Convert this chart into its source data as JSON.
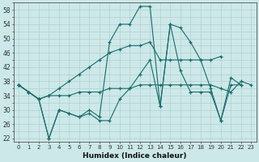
{
  "xlabel": "Humidex (Indice chaleur)",
  "background_color": "#cce8e8",
  "grid_color": "#b0d0d0",
  "line_color": "#1a6b6b",
  "xlim": [
    -0.5,
    23.5
  ],
  "ylim": [
    21,
    60
  ],
  "xticks": [
    0,
    1,
    2,
    3,
    4,
    5,
    6,
    7,
    8,
    9,
    10,
    11,
    12,
    13,
    14,
    15,
    16,
    17,
    18,
    19,
    20,
    21,
    22,
    23
  ],
  "yticks": [
    22,
    26,
    30,
    34,
    38,
    42,
    46,
    50,
    54,
    58
  ],
  "s1_x": [
    0,
    1,
    2,
    3,
    4,
    5,
    6,
    7,
    8,
    9,
    10,
    11,
    12,
    13,
    14,
    15,
    16,
    17,
    18,
    19,
    20,
    21,
    22
  ],
  "s1_y": [
    37,
    35,
    33,
    22,
    30,
    29,
    28,
    30,
    28,
    49,
    54,
    54,
    59,
    59,
    31,
    54,
    53,
    49,
    44,
    36,
    27,
    39,
    37
  ],
  "s2_x": [
    0,
    1,
    2,
    3,
    4,
    5,
    6,
    7,
    8,
    9,
    10,
    11,
    12,
    13,
    14,
    15,
    16,
    17,
    18,
    19,
    20,
    21,
    22
  ],
  "s2_y": [
    37,
    35,
    33,
    22,
    30,
    29,
    28,
    29,
    27,
    27,
    33,
    36,
    40,
    44,
    31,
    54,
    41,
    35,
    35,
    35,
    27,
    37,
    37
  ],
  "s3_x": [
    0,
    1,
    2,
    3,
    4,
    5,
    6,
    7,
    8,
    9,
    10,
    11,
    12,
    13,
    14,
    15,
    16,
    17,
    18,
    19,
    20
  ],
  "s3_y": [
    37,
    35,
    33,
    34,
    36,
    38,
    40,
    42,
    44,
    46,
    47,
    48,
    48,
    49,
    44,
    44,
    44,
    44,
    44,
    44,
    45
  ],
  "s4_x": [
    0,
    1,
    2,
    3,
    4,
    5,
    6,
    7,
    8,
    9,
    10,
    11,
    12,
    13,
    14,
    15,
    16,
    17,
    18,
    19,
    20,
    21,
    22,
    23
  ],
  "s4_y": [
    37,
    35,
    33,
    34,
    34,
    34,
    35,
    35,
    35,
    36,
    36,
    36,
    37,
    37,
    37,
    37,
    37,
    37,
    37,
    37,
    36,
    35,
    38,
    37
  ]
}
